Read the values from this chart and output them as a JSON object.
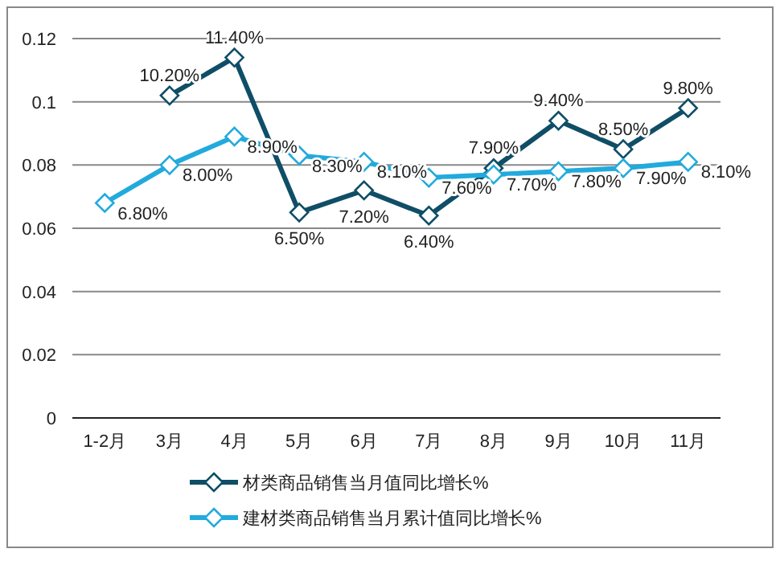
{
  "chart_data": {
    "type": "line",
    "categories": [
      "1-2月",
      "3月",
      "4月",
      "5月",
      "6月",
      "7月",
      "8月",
      "9月",
      "10月",
      "11月"
    ],
    "series": [
      {
        "name": "材类商品销售当月值同比增长%",
        "color": "#0f4e66",
        "values": [
          null,
          0.102,
          0.114,
          0.065,
          0.072,
          0.064,
          0.079,
          0.094,
          0.085,
          0.098
        ],
        "value_labels": [
          null,
          "10.20%",
          "11.40%",
          "6.50%",
          "7.20%",
          "6.40%",
          "7.90%",
          "9.40%",
          "8.50%",
          "9.80%"
        ]
      },
      {
        "name": "建材类商品销售当月累计值同比增长%",
        "color": "#22aadd",
        "values": [
          0.068,
          0.08,
          0.089,
          0.083,
          0.081,
          0.076,
          0.077,
          0.078,
          0.079,
          0.081
        ],
        "value_labels": [
          "6.80%",
          "8.00%",
          "8.90%",
          "8.30%",
          "8.10%",
          "7.60%",
          "7.70%",
          "7.80%",
          "7.90%",
          "8.10%"
        ]
      }
    ],
    "ylim": [
      0,
      0.12
    ],
    "yticks": [
      0,
      0.02,
      0.04,
      0.06,
      0.08,
      0.1,
      0.12
    ],
    "grid": "y",
    "legend": "bottom",
    "marker": "diamond",
    "line_style": "solid"
  }
}
